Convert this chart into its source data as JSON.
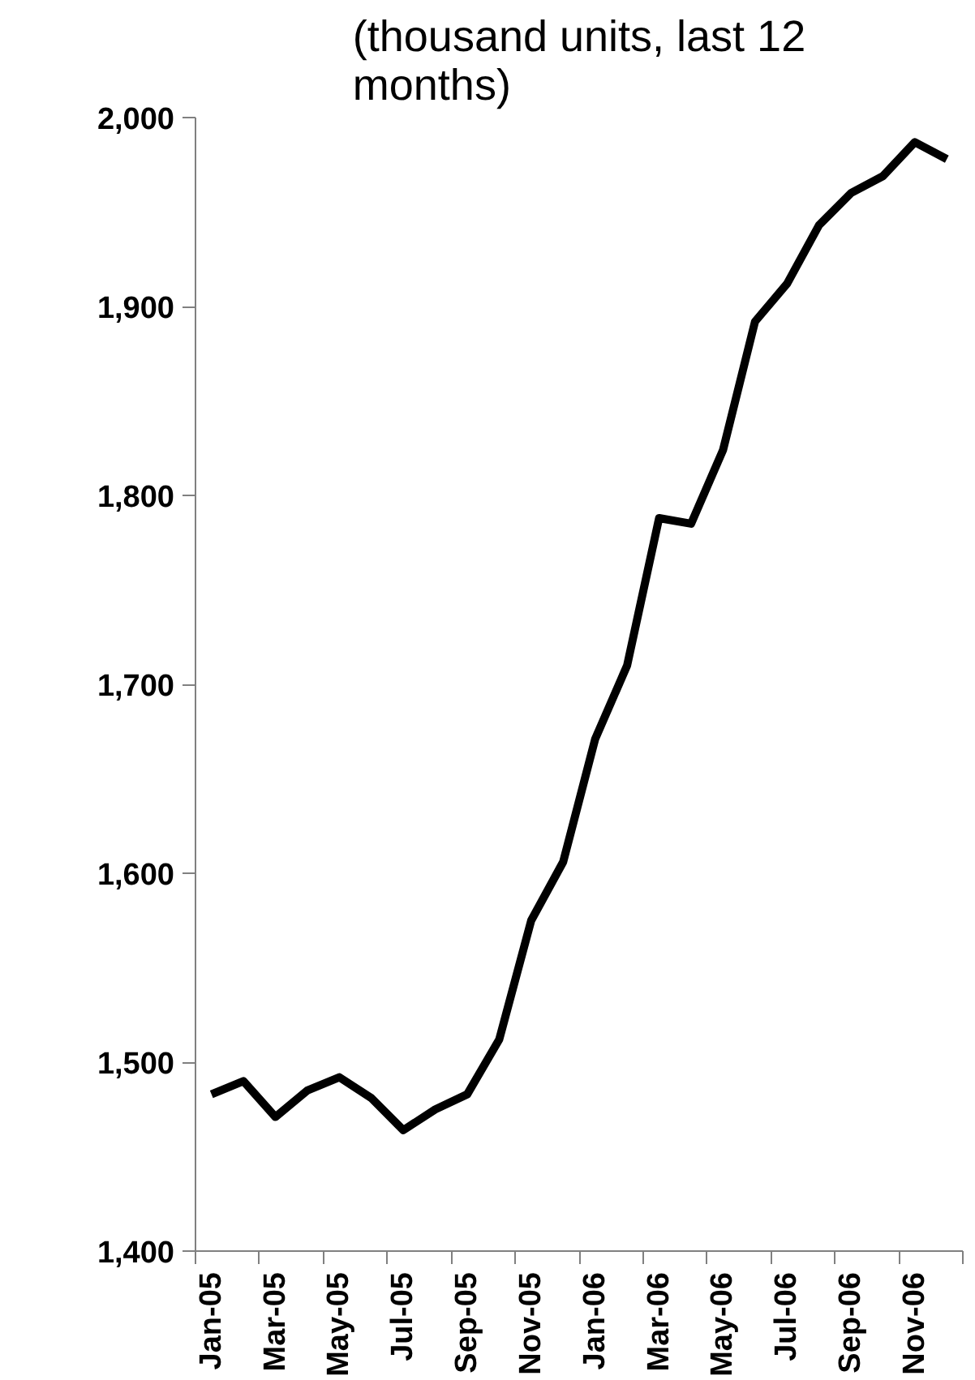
{
  "chart_data": {
    "type": "line",
    "title": "(thousand units, last 12 months)",
    "categories": [
      "Jan-05",
      null,
      "Mar-05",
      null,
      "May-05",
      null,
      "Jul-05",
      null,
      "Sep-05",
      null,
      "Nov-05",
      null,
      "Jan-06",
      null,
      "Mar-06",
      null,
      "May-06",
      null,
      "Jul-06",
      null,
      "Sep-06",
      null,
      "Nov-06",
      null
    ],
    "series": [
      {
        "color": "#000000",
        "values": [
          1483,
          1490,
          1471,
          1485,
          1492,
          1481,
          1464,
          1475,
          1483,
          1512,
          1575,
          1606,
          1671,
          1710,
          1788,
          1785,
          1824,
          1892,
          1912,
          1943,
          1960,
          1969,
          1987,
          1978
        ]
      }
    ],
    "ylim": [
      1400,
      2000
    ],
    "yticks": [
      {
        "value": 1400,
        "label": "1,400"
      },
      {
        "value": 1500,
        "label": "1,500"
      },
      {
        "value": 1600,
        "label": "1,600"
      },
      {
        "value": 1700,
        "label": "1,700"
      },
      {
        "value": 1800,
        "label": "1,800"
      },
      {
        "value": 1900,
        "label": "1,900"
      },
      {
        "value": 2000,
        "label": "2,000"
      }
    ],
    "grid": false,
    "marker": "none",
    "line_style": "solid"
  }
}
